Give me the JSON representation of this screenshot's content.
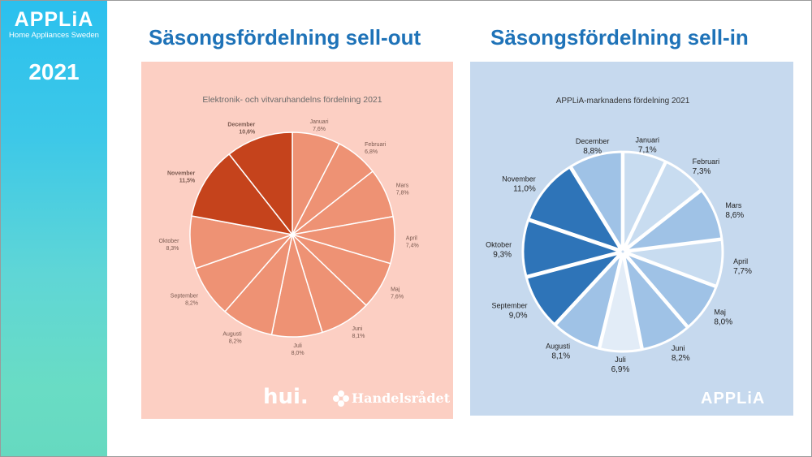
{
  "sidebar": {
    "brand": "APPLiA",
    "brand_sub": "Home Appliances Sweden",
    "year": "2021"
  },
  "headings": {
    "left": "Säsongsfördelning sell-out",
    "right": "Säsongsfördelning sell-in"
  },
  "logos": {
    "hui": "hui.",
    "handelsradet": "Handelsrådet",
    "applia": "APPLiA"
  },
  "chart_data": [
    {
      "type": "pie",
      "title": "Elektronik- och vitvaruhandelns fördelning 2021",
      "categories": [
        "Januari",
        "Februari",
        "Mars",
        "April",
        "Maj",
        "Juni",
        "Juli",
        "Augusti",
        "September",
        "Oktober",
        "November",
        "December"
      ],
      "value_labels": [
        "7,6%",
        "6,8%",
        "7,8%",
        "7,4%",
        "7,6%",
        "8,1%",
        "8,0%",
        "8,2%",
        "8,2%",
        "8,3%",
        "11,5%",
        "10,6%"
      ],
      "values": [
        7.6,
        6.8,
        7.8,
        7.4,
        7.6,
        8.1,
        8.0,
        8.2,
        8.2,
        8.3,
        11.5,
        10.6
      ],
      "colors": [
        "#ee9274",
        "#ee9274",
        "#ee9274",
        "#ee9274",
        "#ee9274",
        "#ee9274",
        "#ee9274",
        "#ee9274",
        "#ee9274",
        "#ee9274",
        "#c5431c",
        "#c5431c"
      ]
    },
    {
      "type": "pie",
      "title": "APPLiA-marknadens fördelning 2021",
      "categories": [
        "Januari",
        "Februari",
        "Mars",
        "April",
        "Maj",
        "Juni",
        "Juli",
        "Augusti",
        "September",
        "Oktober",
        "November",
        "December"
      ],
      "value_labels": [
        "7,1%",
        "7,3%",
        "8,6%",
        "7,7%",
        "8,0%",
        "8,2%",
        "6,9%",
        "8,1%",
        "9,0%",
        "9,3%",
        "11,0%",
        "8,8%"
      ],
      "values": [
        7.1,
        7.3,
        8.6,
        7.7,
        8.0,
        8.2,
        6.9,
        8.1,
        9.0,
        9.3,
        11.0,
        8.8
      ],
      "colors": [
        "#c8dcf0",
        "#c8dcf0",
        "#9fc2e6",
        "#c8dcf0",
        "#9fc2e6",
        "#9fc2e6",
        "#e2ecf7",
        "#9fc2e6",
        "#2e74b8",
        "#2e74b8",
        "#2e74b8",
        "#9fc2e6"
      ]
    }
  ]
}
